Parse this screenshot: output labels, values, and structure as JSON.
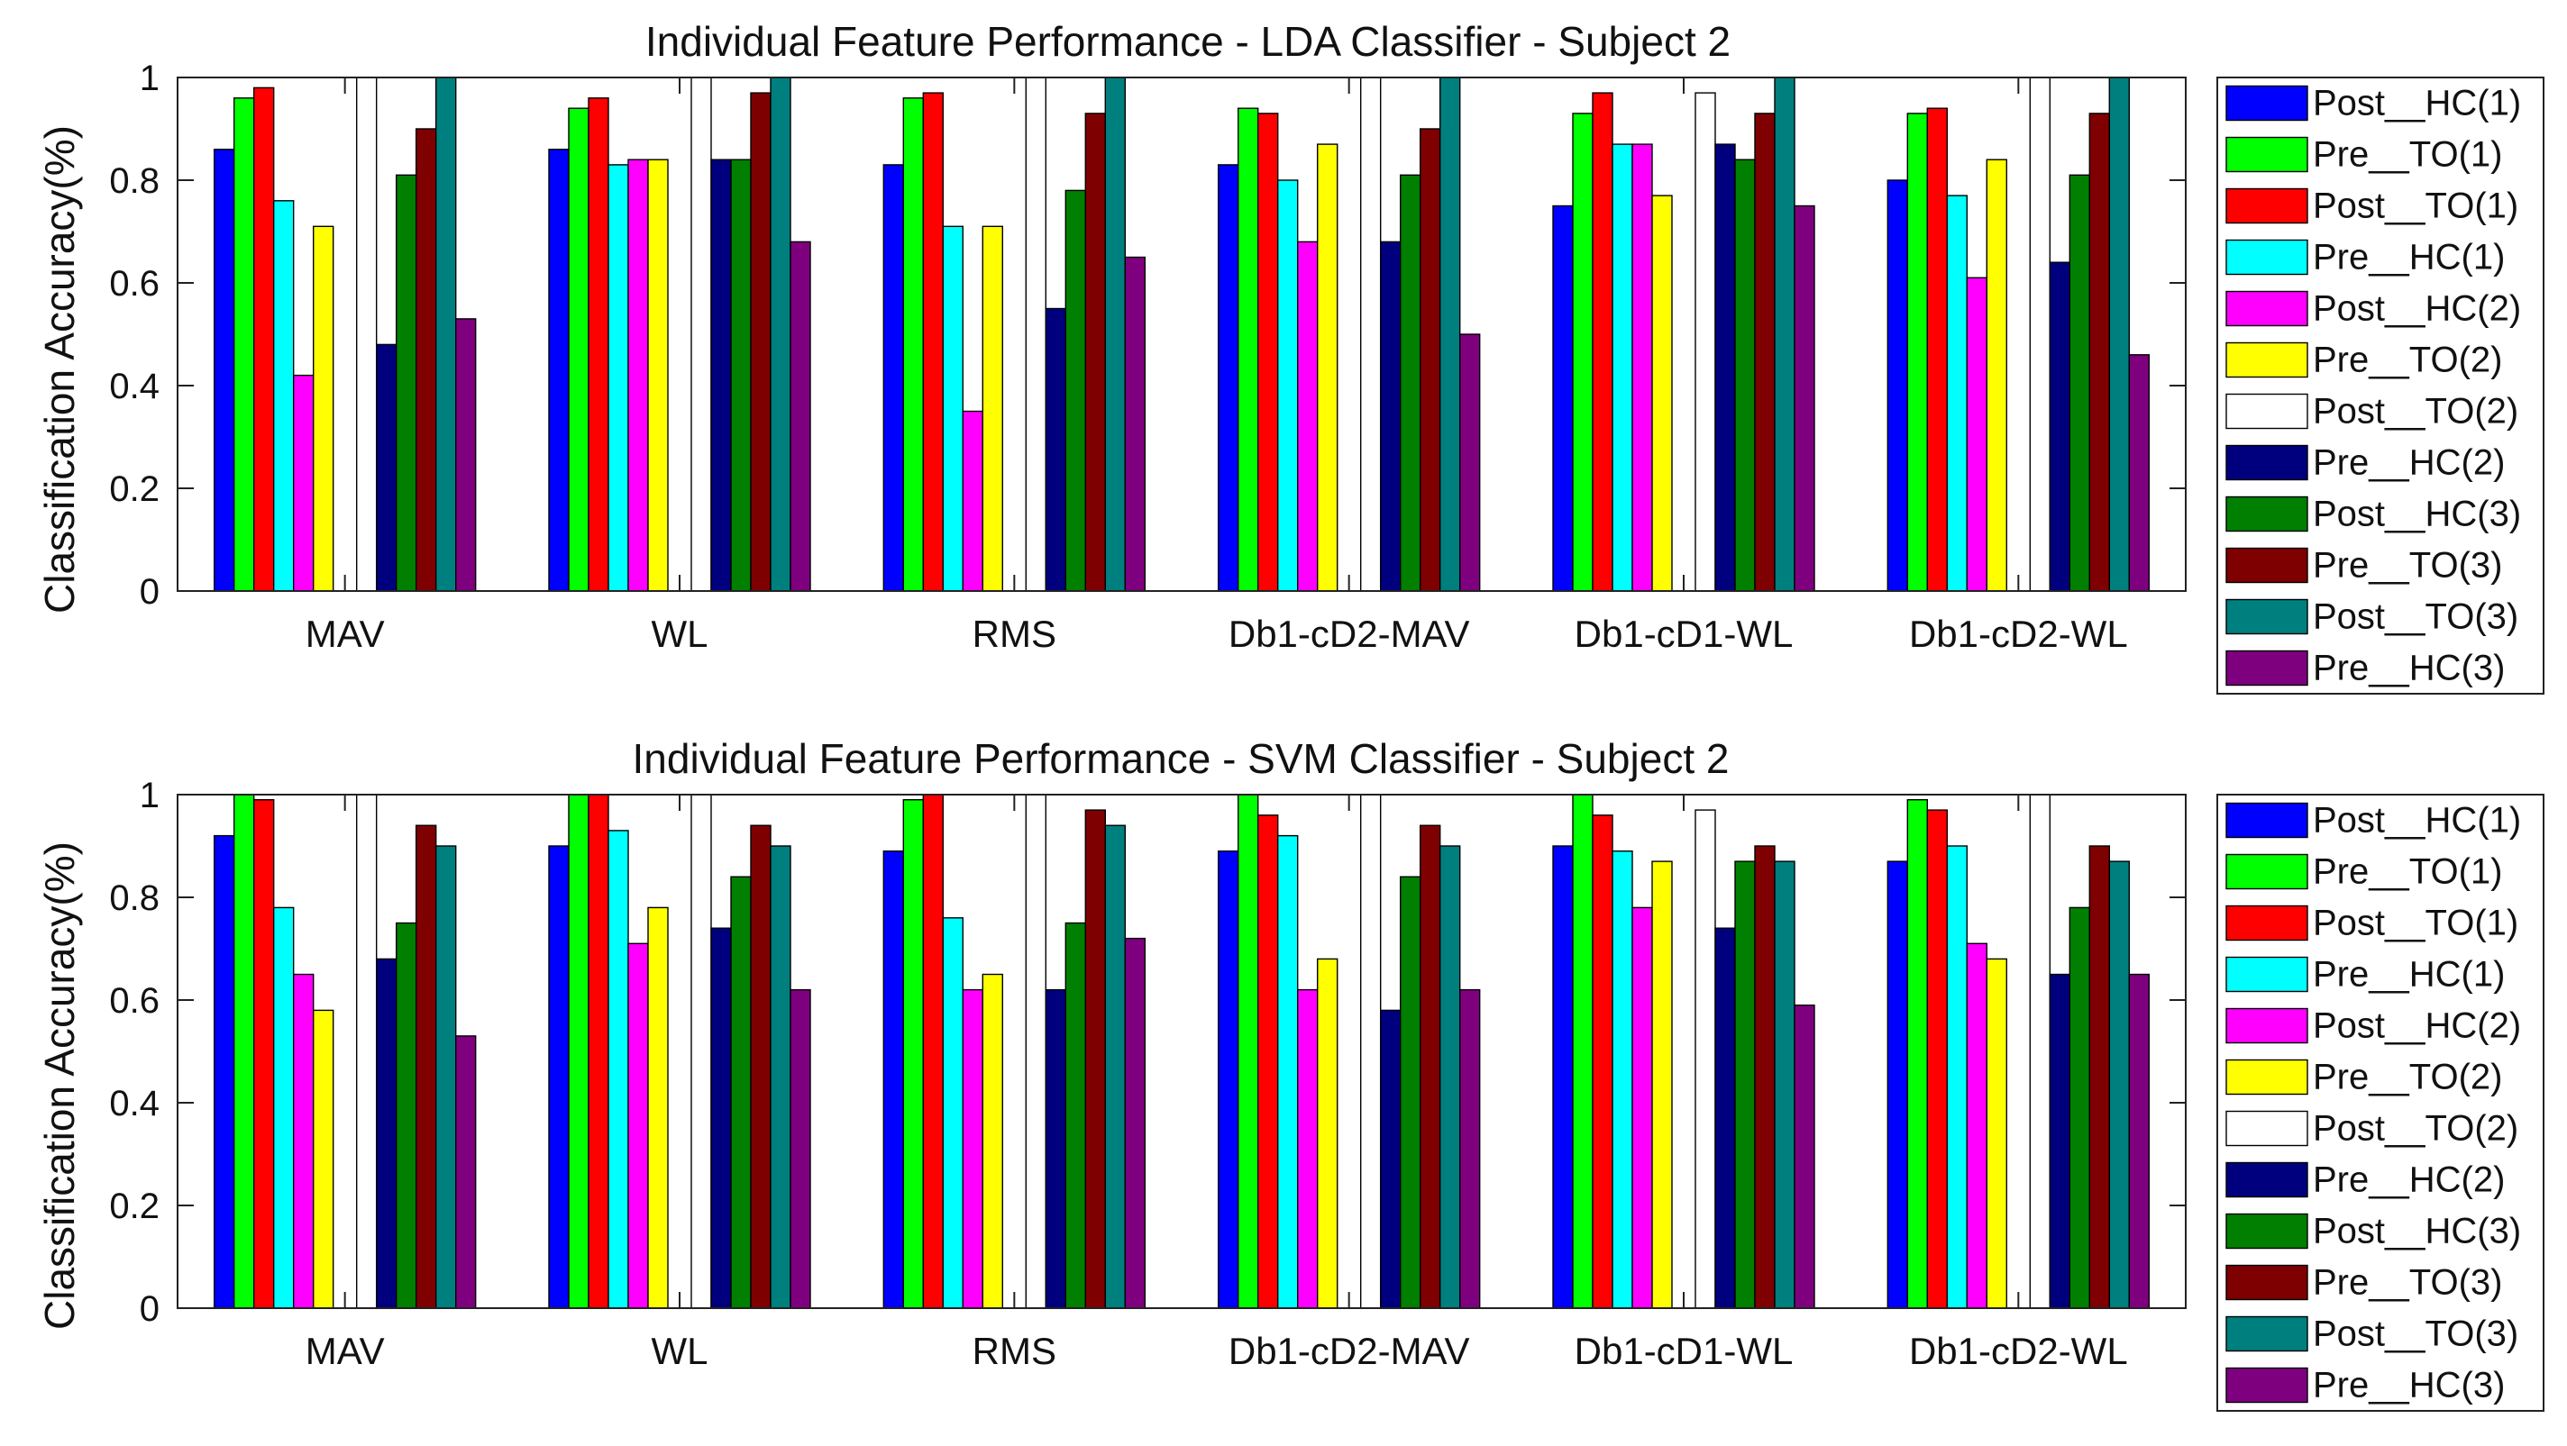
{
  "series_names": [
    "Post__HC(1)",
    "Pre__TO(1)",
    "Post__TO(1)",
    "Pre__HC(1)",
    "Post__HC(2)",
    "Pre__TO(2)",
    "Post__TO(2)",
    "Pre__HC(2)",
    "Post__HC(3)",
    "Pre__TO(3)",
    "Post__TO(3)",
    "Pre__HC(3)"
  ],
  "series_colors": [
    "#0000ff",
    "#00ff00",
    "#ff0000",
    "#00ffff",
    "#ff00ff",
    "#ffff00",
    "#ffffff",
    "#00007f",
    "#007f00",
    "#7f0000",
    "#007f7f",
    "#7f007f"
  ],
  "chart_data": [
    {
      "type": "bar",
      "title": "Individual Feature Performance - LDA Classifier - Subject 2",
      "xlabel": "",
      "ylabel": "Classification Accuracy(%)",
      "ylim": [
        0,
        1
      ],
      "yticks": [
        "0",
        "0.2",
        "0.4",
        "0.6",
        "0.8",
        "1"
      ],
      "categories": [
        "MAV",
        "WL",
        "RMS",
        "Db1-cD2-MAV",
        "Db1-cD1-WL",
        "Db1-cD2-WL"
      ],
      "legend_position": "outside-right",
      "series": [
        {
          "name": "Post__HC(1)",
          "values": [
            0.86,
            0.86,
            0.83,
            0.83,
            0.75,
            0.8
          ]
        },
        {
          "name": "Pre__TO(1)",
          "values": [
            0.96,
            0.94,
            0.96,
            0.94,
            0.93,
            0.93
          ]
        },
        {
          "name": "Post__TO(1)",
          "values": [
            0.98,
            0.96,
            0.97,
            0.93,
            0.97,
            0.94
          ]
        },
        {
          "name": "Pre__HC(1)",
          "values": [
            0.76,
            0.83,
            0.71,
            0.8,
            0.87,
            0.77
          ]
        },
        {
          "name": "Post__HC(2)",
          "values": [
            0.42,
            0.84,
            0.35,
            0.68,
            0.87,
            0.61
          ]
        },
        {
          "name": "Pre__TO(2)",
          "values": [
            0.71,
            0.84,
            0.71,
            0.87,
            0.77,
            0.84
          ]
        },
        {
          "name": "Post__TO(2)",
          "values": [
            1.0,
            1.0,
            1.0,
            1.0,
            0.97,
            1.0
          ]
        },
        {
          "name": "Pre__HC(2)",
          "values": [
            0.48,
            0.84,
            0.55,
            0.68,
            0.87,
            0.64
          ]
        },
        {
          "name": "Post__HC(3)",
          "values": [
            0.81,
            0.84,
            0.78,
            0.81,
            0.84,
            0.81
          ]
        },
        {
          "name": "Pre__TO(3)",
          "values": [
            0.9,
            0.97,
            0.93,
            0.9,
            0.93,
            0.93
          ]
        },
        {
          "name": "Post__TO(3)",
          "values": [
            1.0,
            1.0,
            1.0,
            1.0,
            1.0,
            1.0
          ]
        },
        {
          "name": "Pre__HC(3)",
          "values": [
            0.53,
            0.68,
            0.65,
            0.5,
            0.75,
            0.46
          ]
        }
      ]
    },
    {
      "type": "bar",
      "title": "Individual Feature Performance - SVM Classifier - Subject 2",
      "xlabel": "",
      "ylabel": "Classification Accuracy(%)",
      "ylim": [
        0,
        1
      ],
      "yticks": [
        "0",
        "0.2",
        "0.4",
        "0.6",
        "0.8",
        "1"
      ],
      "categories": [
        "MAV",
        "WL",
        "RMS",
        "Db1-cD2-MAV",
        "Db1-cD1-WL",
        "Db1-cD2-WL"
      ],
      "legend_position": "outside-right",
      "series": [
        {
          "name": "Post__HC(1)",
          "values": [
            0.92,
            0.9,
            0.89,
            0.89,
            0.9,
            0.87
          ]
        },
        {
          "name": "Pre__TO(1)",
          "values": [
            1.0,
            1.0,
            0.99,
            1.0,
            1.0,
            0.99
          ]
        },
        {
          "name": "Post__TO(1)",
          "values": [
            0.99,
            1.0,
            1.0,
            0.96,
            0.96,
            0.97
          ]
        },
        {
          "name": "Pre__HC(1)",
          "values": [
            0.78,
            0.93,
            0.76,
            0.92,
            0.89,
            0.9
          ]
        },
        {
          "name": "Post__HC(2)",
          "values": [
            0.65,
            0.71,
            0.62,
            0.62,
            0.78,
            0.71
          ]
        },
        {
          "name": "Pre__TO(2)",
          "values": [
            0.58,
            0.78,
            0.65,
            0.68,
            0.87,
            0.68
          ]
        },
        {
          "name": "Post__TO(2)",
          "values": [
            1.0,
            1.0,
            1.0,
            1.0,
            0.97,
            1.0
          ]
        },
        {
          "name": "Pre__HC(2)",
          "values": [
            0.68,
            0.74,
            0.62,
            0.58,
            0.74,
            0.65
          ]
        },
        {
          "name": "Post__HC(3)",
          "values": [
            0.75,
            0.84,
            0.75,
            0.84,
            0.87,
            0.78
          ]
        },
        {
          "name": "Pre__TO(3)",
          "values": [
            0.94,
            0.94,
            0.97,
            0.94,
            0.9,
            0.9
          ]
        },
        {
          "name": "Post__TO(3)",
          "values": [
            0.9,
            0.9,
            0.94,
            0.9,
            0.87,
            0.87
          ]
        },
        {
          "name": "Pre__HC(3)",
          "values": [
            0.53,
            0.62,
            0.72,
            0.62,
            0.59,
            0.65
          ]
        }
      ]
    }
  ]
}
